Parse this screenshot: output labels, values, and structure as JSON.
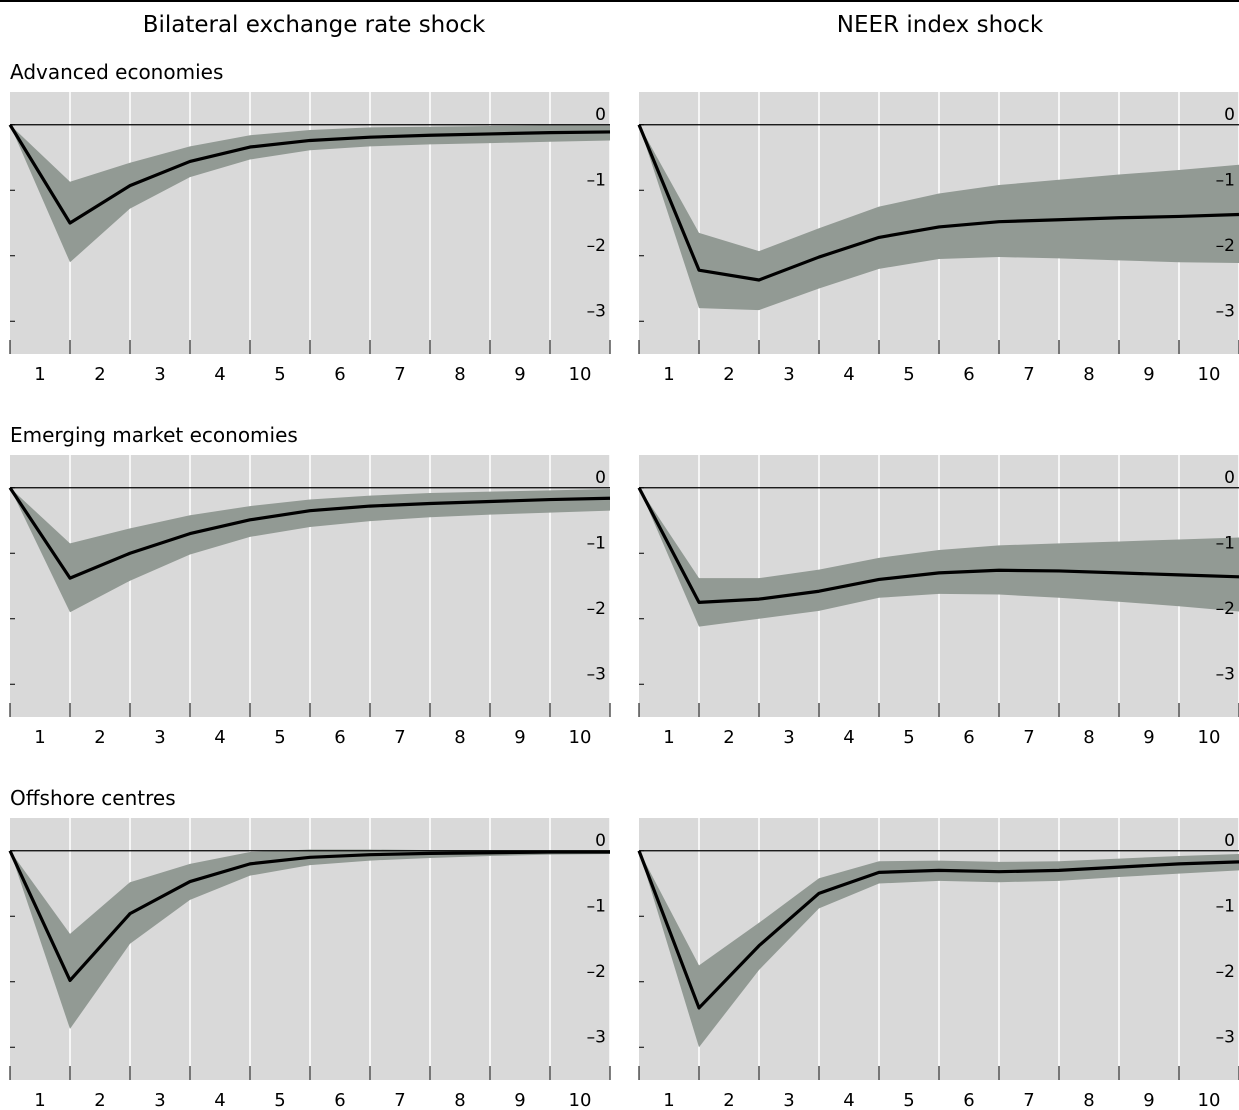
{
  "column_titles": [
    "Bilateral exchange rate shock",
    "NEER index shock"
  ],
  "row_labels": [
    "Advanced economies",
    "Emerging market economies",
    "Offshore centres"
  ],
  "colors": {
    "band": "#929a94",
    "panel_bg": "#d9d9d9",
    "grid": "#ffffff",
    "line": "#000000"
  },
  "chart_data": [
    {
      "type": "area",
      "title": "",
      "xlabel": "",
      "ylabel": "",
      "ylim": [
        -3,
        0
      ],
      "x_ticks": [
        "1",
        "2",
        "3",
        "4",
        "5",
        "6",
        "7",
        "8",
        "9",
        "10"
      ],
      "y_ticks": [
        "0",
        "–1",
        "–2",
        "–3"
      ],
      "grid": true,
      "x": [
        0,
        1,
        2,
        3,
        4,
        5,
        6,
        7,
        8,
        9,
        10
      ],
      "series": [
        {
          "median": [
            0,
            -1.5,
            -0.93,
            -0.56,
            -0.34,
            -0.24,
            -0.19,
            -0.16,
            -0.14,
            -0.12,
            -0.11
          ],
          "lower": [
            0,
            -2.1,
            -1.28,
            -0.8,
            -0.53,
            -0.39,
            -0.33,
            -0.3,
            -0.28,
            -0.26,
            -0.24
          ],
          "upper": [
            0,
            -0.87,
            -0.58,
            -0.33,
            -0.16,
            -0.08,
            -0.04,
            -0.03,
            -0.02,
            -0.01,
            -0.01
          ]
        }
      ]
    },
    {
      "type": "area",
      "title": "",
      "xlabel": "",
      "ylabel": "",
      "ylim": [
        -3,
        0
      ],
      "x_ticks": [
        "1",
        "2",
        "3",
        "4",
        "5",
        "6",
        "7",
        "8",
        "9",
        "10"
      ],
      "y_ticks": [
        "0",
        "–1",
        "–2",
        "–3"
      ],
      "grid": true,
      "x": [
        0,
        1,
        2,
        3,
        4,
        5,
        6,
        7,
        8,
        9,
        10
      ],
      "series": [
        {
          "median": [
            0,
            -2.22,
            -2.37,
            -2.02,
            -1.72,
            -1.56,
            -1.48,
            -1.45,
            -1.42,
            -1.4,
            -1.37
          ],
          "lower": [
            0,
            -2.8,
            -2.83,
            -2.5,
            -2.2,
            -2.05,
            -2.02,
            -2.04,
            -2.07,
            -2.1,
            -2.11
          ],
          "upper": [
            0,
            -1.65,
            -1.93,
            -1.58,
            -1.25,
            -1.05,
            -0.92,
            -0.84,
            -0.76,
            -0.69,
            -0.61
          ]
        }
      ]
    },
    {
      "type": "area",
      "title": "",
      "xlabel": "",
      "ylabel": "",
      "ylim": [
        -3,
        0
      ],
      "x_ticks": [
        "1",
        "2",
        "3",
        "4",
        "5",
        "6",
        "7",
        "8",
        "9",
        "10"
      ],
      "y_ticks": [
        "0",
        "–1",
        "–2",
        "–3"
      ],
      "grid": true,
      "x": [
        0,
        1,
        2,
        3,
        4,
        5,
        6,
        7,
        8,
        9,
        10
      ],
      "series": [
        {
          "median": [
            0,
            -1.38,
            -1.0,
            -0.7,
            -0.49,
            -0.35,
            -0.28,
            -0.24,
            -0.21,
            -0.18,
            -0.16
          ],
          "lower": [
            0,
            -1.9,
            -1.42,
            -1.02,
            -0.75,
            -0.6,
            -0.51,
            -0.45,
            -0.41,
            -0.38,
            -0.35
          ],
          "upper": [
            0,
            -0.85,
            -0.62,
            -0.42,
            -0.28,
            -0.18,
            -0.12,
            -0.08,
            -0.06,
            -0.04,
            -0.02
          ]
        }
      ]
    },
    {
      "type": "area",
      "title": "",
      "xlabel": "",
      "ylabel": "",
      "ylim": [
        -3,
        0
      ],
      "x_ticks": [
        "1",
        "2",
        "3",
        "4",
        "5",
        "6",
        "7",
        "8",
        "9",
        "10"
      ],
      "y_ticks": [
        "0",
        "–1",
        "–2",
        "–3"
      ],
      "grid": true,
      "x": [
        0,
        1,
        2,
        3,
        4,
        5,
        6,
        7,
        8,
        9,
        10
      ],
      "series": [
        {
          "median": [
            0,
            -1.75,
            -1.7,
            -1.58,
            -1.4,
            -1.3,
            -1.26,
            -1.27,
            -1.3,
            -1.33,
            -1.36
          ],
          "lower": [
            0,
            -2.12,
            -2.0,
            -1.88,
            -1.68,
            -1.62,
            -1.63,
            -1.68,
            -1.74,
            -1.81,
            -1.89
          ],
          "upper": [
            0,
            -1.38,
            -1.38,
            -1.25,
            -1.07,
            -0.95,
            -0.88,
            -0.85,
            -0.82,
            -0.79,
            -0.76
          ]
        }
      ]
    },
    {
      "type": "area",
      "title": "",
      "xlabel": "",
      "ylabel": "",
      "ylim": [
        -3,
        0
      ],
      "x_ticks": [
        "1",
        "2",
        "3",
        "4",
        "5",
        "6",
        "7",
        "8",
        "9",
        "10"
      ],
      "y_ticks": [
        "0",
        "–1",
        "–2",
        "–3"
      ],
      "grid": true,
      "x": [
        0,
        1,
        2,
        3,
        4,
        5,
        6,
        7,
        8,
        9,
        10
      ],
      "series": [
        {
          "median": [
            0,
            -1.98,
            -0.96,
            -0.47,
            -0.2,
            -0.1,
            -0.06,
            -0.04,
            -0.03,
            -0.02,
            -0.02
          ],
          "lower": [
            0,
            -2.72,
            -1.42,
            -0.75,
            -0.38,
            -0.22,
            -0.15,
            -0.11,
            -0.08,
            -0.06,
            -0.05
          ],
          "upper": [
            0,
            -1.27,
            -0.48,
            -0.2,
            -0.02,
            0.02,
            0.02,
            0.01,
            0.01,
            0.01,
            0.01
          ]
        }
      ]
    },
    {
      "type": "area",
      "title": "",
      "xlabel": "",
      "ylabel": "",
      "ylim": [
        -3,
        0
      ],
      "x_ticks": [
        "1",
        "2",
        "3",
        "4",
        "5",
        "6",
        "7",
        "8",
        "9",
        "10"
      ],
      "y_ticks": [
        "0",
        "–1",
        "–2",
        "–3"
      ],
      "grid": true,
      "x": [
        0,
        1,
        2,
        3,
        4,
        5,
        6,
        7,
        8,
        9,
        10
      ],
      "series": [
        {
          "median": [
            0,
            -2.4,
            -1.45,
            -0.65,
            -0.33,
            -0.3,
            -0.32,
            -0.3,
            -0.25,
            -0.2,
            -0.17
          ],
          "lower": [
            0,
            -3.0,
            -1.82,
            -0.88,
            -0.5,
            -0.46,
            -0.48,
            -0.46,
            -0.4,
            -0.35,
            -0.3
          ],
          "upper": [
            0,
            -1.75,
            -1.1,
            -0.42,
            -0.16,
            -0.15,
            -0.17,
            -0.16,
            -0.12,
            -0.08,
            -0.05
          ]
        }
      ]
    }
  ]
}
